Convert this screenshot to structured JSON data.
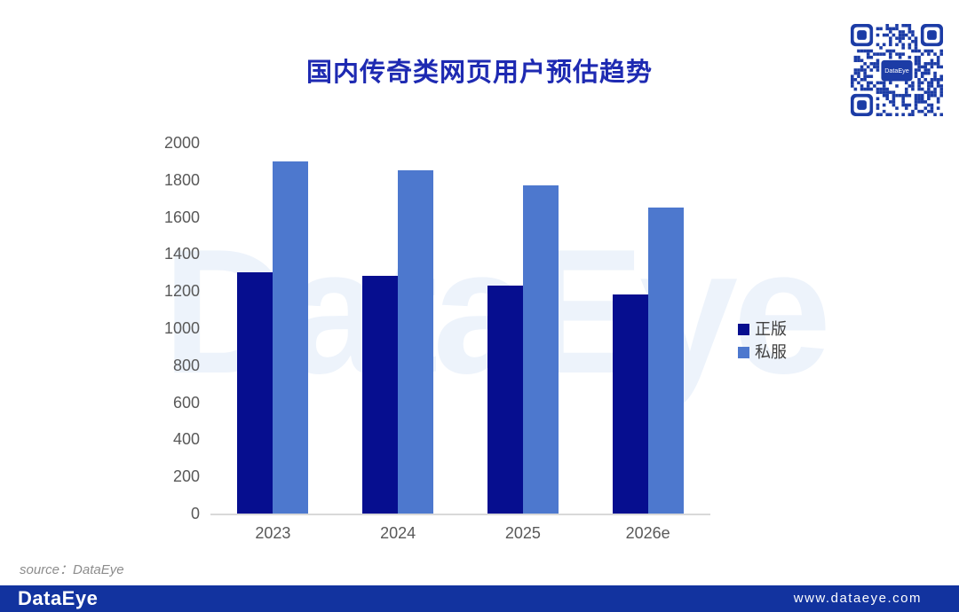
{
  "title": {
    "text": "国内传奇类网页用户预估趋势"
  },
  "chart_data": {
    "type": "bar",
    "categories": [
      "2023",
      "2024",
      "2025",
      "2026e"
    ],
    "series": [
      {
        "name": "正版",
        "color": "#060e8f",
        "values": [
          1300,
          1280,
          1230,
          1180
        ]
      },
      {
        "name": "私服",
        "color": "#4d78ce",
        "values": [
          1900,
          1850,
          1770,
          1650
        ]
      }
    ],
    "ylim": [
      0,
      2000
    ],
    "yticks": [
      0,
      200,
      400,
      600,
      800,
      1000,
      1200,
      1400,
      1600,
      1800,
      2000
    ],
    "grid": false,
    "legend_position": "right",
    "xlabel": "",
    "ylabel": ""
  },
  "watermark": {
    "text": "DataEye"
  },
  "source_note": "source：DataEye",
  "footer": {
    "logo": "DataEye",
    "url": "www.dataeye.com"
  },
  "qr": {
    "label": "DataEye"
  },
  "colors": {
    "title": "#1e2ab2",
    "footer_bg": "#12339f",
    "qr_blue": "#1c3ca6",
    "axis_line": "#d9d9d9",
    "tick_text": "#595959",
    "watermark": "#edf3fb"
  }
}
